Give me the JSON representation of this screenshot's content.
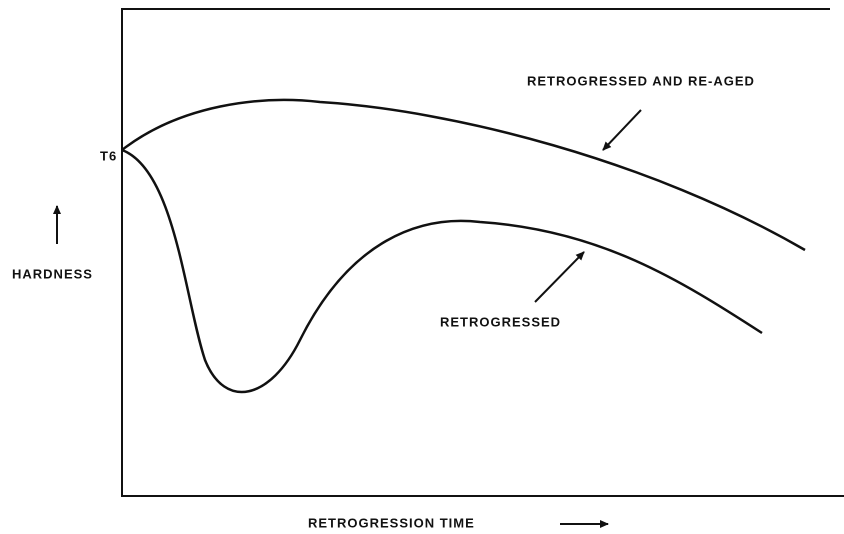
{
  "y_label": "HARDNESS",
  "y_marker": "T6",
  "x_label": "RETROGRESSION TIME",
  "curves": [
    {
      "label": "RETROGRESSED AND RE-AGED"
    },
    {
      "label": "RETROGRESSED"
    }
  ]
}
